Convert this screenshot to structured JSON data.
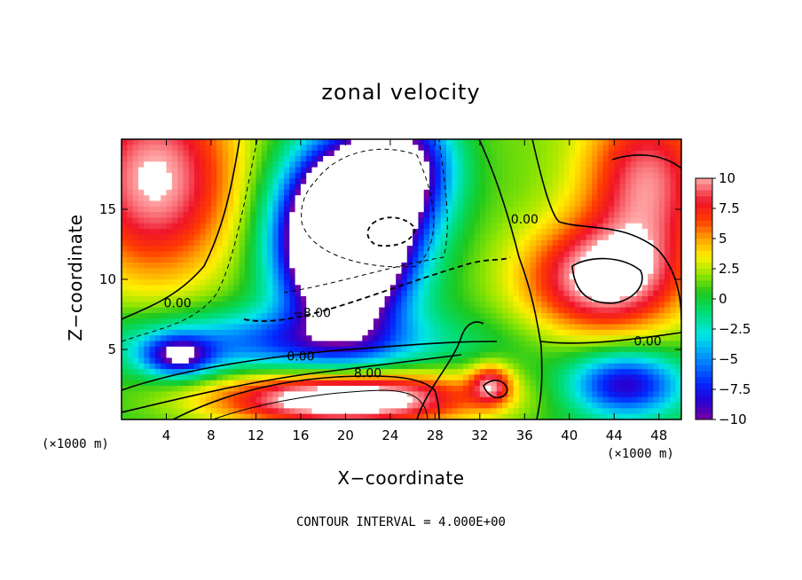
{
  "chart_data": {
    "type": "heatmap",
    "title": "zonal velocity",
    "xlabel": "X−coordinate",
    "ylabel": "Z−coordinate",
    "x_unit_label": "(×1000 m)",
    "xlim": [
      0,
      50
    ],
    "ylim": [
      0,
      20
    ],
    "x_ticks": [
      4,
      8,
      12,
      16,
      20,
      24,
      28,
      32,
      36,
      40,
      44,
      48
    ],
    "y_ticks": [
      5,
      10,
      15
    ],
    "colorbar": {
      "range": [
        -10,
        10
      ],
      "ticks": [
        10,
        7.5,
        5,
        2.5,
        0,
        -2.5,
        -5,
        -7.5,
        -10
      ],
      "tick_labels": [
        "10",
        "7.5",
        "5",
        "2.5",
        "0",
        "−2.5",
        "−5",
        "−7.5",
        "−10"
      ]
    },
    "contour_labels": [
      {
        "text": "0.00",
        "x": 5,
        "y": 8
      },
      {
        "text": "−8.00",
        "x": 17,
        "y": 7.3
      },
      {
        "text": "0.00",
        "x": 16,
        "y": 4.2
      },
      {
        "text": "8.00",
        "x": 22,
        "y": 3.0
      },
      {
        "text": "0.00",
        "x": 36,
        "y": 14
      },
      {
        "text": "0.00",
        "x": 47,
        "y": 5.3
      }
    ],
    "contour_interval_text": "CONTOUR INTERVAL = 4.000E+00",
    "features": [
      {
        "name": "core",
        "x": 20,
        "y": 13,
        "sx": 3.8,
        "sy": 4.2,
        "value": -28
      },
      {
        "name": "upper-tongue",
        "x": 25,
        "y": 18,
        "sx": 3.2,
        "sy": 3.0,
        "value": -12
      },
      {
        "name": "lower-left-band",
        "x": 14,
        "y": 5.5,
        "sx": 10,
        "sy": 1.6,
        "value": -6.5
      },
      {
        "name": "left-blob",
        "x": 5,
        "y": 4.5,
        "sx": 2.2,
        "sy": 1.0,
        "value": -9
      },
      {
        "name": "bottom-jet",
        "x": 20,
        "y": 1.5,
        "sx": 8,
        "sy": 1.4,
        "value": 13
      },
      {
        "name": "upper-left",
        "x": 3,
        "y": 17,
        "sx": 5,
        "sy": 5,
        "value": 9
      },
      {
        "name": "right-high",
        "x": 43,
        "y": 10,
        "sx": 5,
        "sy": 2.8,
        "value": 10
      },
      {
        "name": "upper-right",
        "x": 47,
        "y": 17,
        "sx": 4,
        "sy": 4,
        "value": 8
      },
      {
        "name": "low-right",
        "x": 45,
        "y": 2.5,
        "sx": 3.5,
        "sy": 1.6,
        "value": -9.5
      },
      {
        "name": "spot-32",
        "x": 33,
        "y": 2.5,
        "sx": 1.3,
        "sy": 1.0,
        "value": 7
      }
    ]
  }
}
